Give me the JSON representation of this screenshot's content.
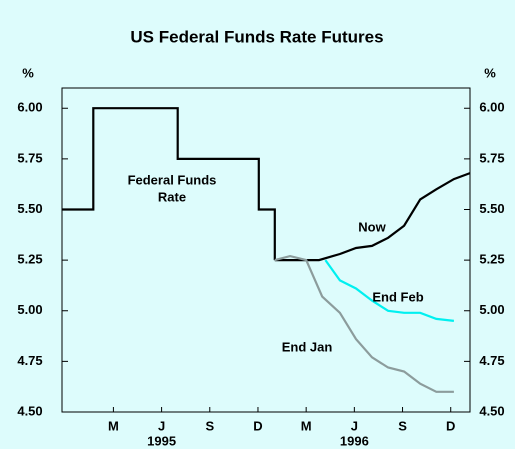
{
  "chart_data": {
    "type": "line",
    "title": "US Federal Funds Rate Futures",
    "y_unit_left": "%",
    "y_unit_right": "%",
    "xlim": [
      -1.2,
      24.2
    ],
    "xticks": [
      {
        "value": 2,
        "label": "M"
      },
      {
        "value": 5,
        "label": "J"
      },
      {
        "value": 8,
        "label": "S"
      },
      {
        "value": 11,
        "label": "D"
      },
      {
        "value": 14,
        "label": "M"
      },
      {
        "value": 17,
        "label": "J"
      },
      {
        "value": 20,
        "label": "S"
      },
      {
        "value": 23,
        "label": "D"
      }
    ],
    "years": [
      "1995",
      "1996"
    ],
    "ylim": [
      4.5,
      6.1
    ],
    "yticks": [
      {
        "value": 4.5,
        "label": "4.50"
      },
      {
        "value": 4.75,
        "label": "4.75"
      },
      {
        "value": 5.0,
        "label": "5.00"
      },
      {
        "value": 5.25,
        "label": "5.25"
      },
      {
        "value": 5.5,
        "label": "5.50"
      },
      {
        "value": 5.75,
        "label": "5.75"
      },
      {
        "value": 6.0,
        "label": "6.00"
      }
    ],
    "series": [
      {
        "name": "Federal Funds Rate",
        "label_lines": [
          "Federal Funds",
          "Rate"
        ],
        "color": "#000000",
        "x": [
          -1.2,
          0.75,
          0.75,
          6.0,
          6.0,
          11.05,
          11.05,
          12.05,
          12.05
        ],
        "values": [
          5.5,
          5.5,
          6.0,
          6.0,
          5.75,
          5.75,
          5.5,
          5.5,
          5.25
        ]
      },
      {
        "name": "Now",
        "label_lines": [
          "Now"
        ],
        "color": "#000000",
        "x": [
          12.05,
          14.8,
          16.1,
          17.1,
          18.1,
          19.1,
          20.1,
          21.1,
          22.1,
          23.2,
          24.2
        ],
        "values": [
          5.25,
          5.25,
          5.28,
          5.31,
          5.32,
          5.36,
          5.42,
          5.55,
          5.6,
          5.65,
          5.68
        ]
      },
      {
        "name": "End Feb",
        "label_lines": [
          "End Feb"
        ],
        "color": "#00f0f0",
        "x": [
          15.2,
          16.1,
          17.1,
          18.1,
          19.1,
          20.1,
          21.1,
          22.1,
          23.2
        ],
        "values": [
          5.25,
          5.15,
          5.11,
          5.05,
          5.0,
          4.99,
          4.99,
          4.96,
          4.95
        ]
      },
      {
        "name": "End Jan",
        "label_lines": [
          "End Jan"
        ],
        "color": "#8c9c9c",
        "x": [
          12.05,
          13.0,
          14.0,
          15.0,
          16.1,
          17.1,
          18.1,
          19.1,
          20.1,
          21.1,
          22.1,
          23.2
        ],
        "values": [
          5.25,
          5.27,
          5.25,
          5.07,
          4.99,
          4.86,
          4.77,
          4.72,
          4.7,
          4.64,
          4.6,
          4.6
        ]
      }
    ]
  }
}
